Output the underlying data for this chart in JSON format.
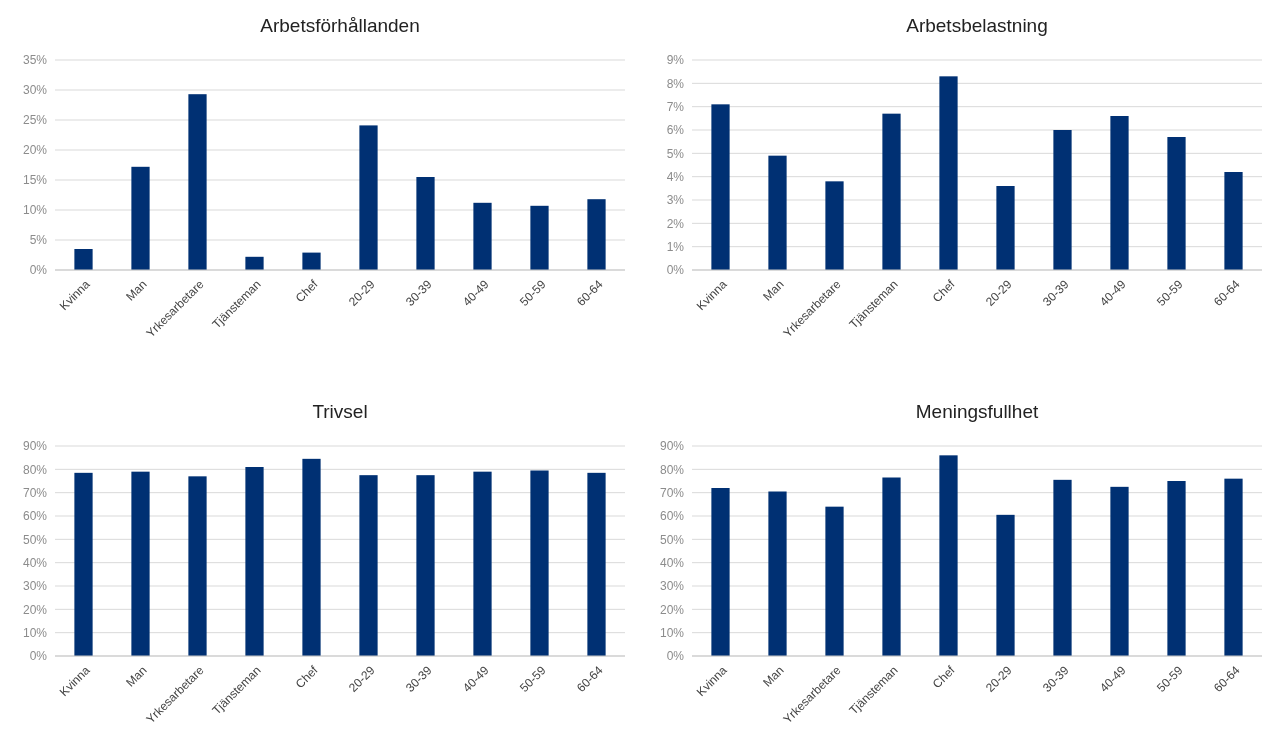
{
  "chart_data": [
    {
      "type": "bar",
      "title": "Arbetsförhållanden",
      "categories": [
        "Kvinna",
        "Man",
        "Yrkesarbetare",
        "Tjänsteman",
        "Chef",
        "20-29",
        "30-39",
        "40-49",
        "50-59",
        "60-64"
      ],
      "values": [
        3.5,
        17.2,
        29.3,
        2.2,
        2.9,
        24.1,
        15.5,
        11.2,
        10.7,
        11.8
      ],
      "color": "#003073",
      "ylim": [
        0,
        35
      ],
      "yticks": [
        {
          "value": 0,
          "label": "0%"
        },
        {
          "value": 5,
          "label": "5%"
        },
        {
          "value": 10,
          "label": "10%"
        },
        {
          "value": 15,
          "label": "15%"
        },
        {
          "value": 20,
          "label": "20%"
        },
        {
          "value": 25,
          "label": "25%"
        },
        {
          "value": 30,
          "label": "30%"
        },
        {
          "value": 35,
          "label": "35%"
        }
      ],
      "grid": "y"
    },
    {
      "type": "bar",
      "title": "Arbetsbelastning",
      "categories": [
        "Kvinna",
        "Man",
        "Yrkesarbetare",
        "Tjänsteman",
        "Chef",
        "20-29",
        "30-39",
        "40-49",
        "50-59",
        "60-64"
      ],
      "values": [
        7.1,
        4.9,
        3.8,
        6.7,
        8.3,
        3.6,
        6.0,
        6.6,
        5.7,
        4.2
      ],
      "color": "#003073",
      "ylim": [
        0,
        9
      ],
      "yticks": [
        {
          "value": 0,
          "label": "0%"
        },
        {
          "value": 1,
          "label": "1%"
        },
        {
          "value": 2,
          "label": "2%"
        },
        {
          "value": 3,
          "label": "3%"
        },
        {
          "value": 4,
          "label": "4%"
        },
        {
          "value": 5,
          "label": "5%"
        },
        {
          "value": 6,
          "label": "6%"
        },
        {
          "value": 7,
          "label": "7%"
        },
        {
          "value": 8,
          "label": "8%"
        },
        {
          "value": 9,
          "label": "9%"
        }
      ],
      "grid": "y"
    },
    {
      "type": "bar",
      "title": "Trivsel",
      "categories": [
        "Kvinna",
        "Man",
        "Yrkesarbetare",
        "Tjänsteman",
        "Chef",
        "20-29",
        "30-39",
        "40-49",
        "50-59",
        "60-64"
      ],
      "values": [
        78.5,
        79,
        77,
        81,
        84.5,
        77.5,
        77.5,
        79,
        79.5,
        78.5
      ],
      "color": "#003073",
      "ylim": [
        0,
        90
      ],
      "yticks": [
        {
          "value": 0,
          "label": "0%"
        },
        {
          "value": 10,
          "label": "10%"
        },
        {
          "value": 20,
          "label": "20%"
        },
        {
          "value": 30,
          "label": "30%"
        },
        {
          "value": 40,
          "label": "40%"
        },
        {
          "value": 50,
          "label": "50%"
        },
        {
          "value": 60,
          "label": "60%"
        },
        {
          "value": 70,
          "label": "70%"
        },
        {
          "value": 80,
          "label": "80%"
        },
        {
          "value": 90,
          "label": "90%"
        }
      ],
      "grid": "y"
    },
    {
      "type": "bar",
      "title": "Meningsfullhet",
      "categories": [
        "Kvinna",
        "Man",
        "Yrkesarbetare",
        "Tjänsteman",
        "Chef",
        "20-29",
        "30-39",
        "40-49",
        "50-59",
        "60-64"
      ],
      "values": [
        72,
        70.5,
        64,
        76.5,
        86,
        60.5,
        75.5,
        72.5,
        75,
        76
      ],
      "color": "#003073",
      "ylim": [
        0,
        90
      ],
      "yticks": [
        {
          "value": 0,
          "label": "0%"
        },
        {
          "value": 10,
          "label": "10%"
        },
        {
          "value": 20,
          "label": "20%"
        },
        {
          "value": 30,
          "label": "30%"
        },
        {
          "value": 40,
          "label": "40%"
        },
        {
          "value": 50,
          "label": "50%"
        },
        {
          "value": 60,
          "label": "60%"
        },
        {
          "value": 70,
          "label": "70%"
        },
        {
          "value": 80,
          "label": "80%"
        },
        {
          "value": 90,
          "label": "90%"
        }
      ],
      "grid": "y"
    }
  ]
}
